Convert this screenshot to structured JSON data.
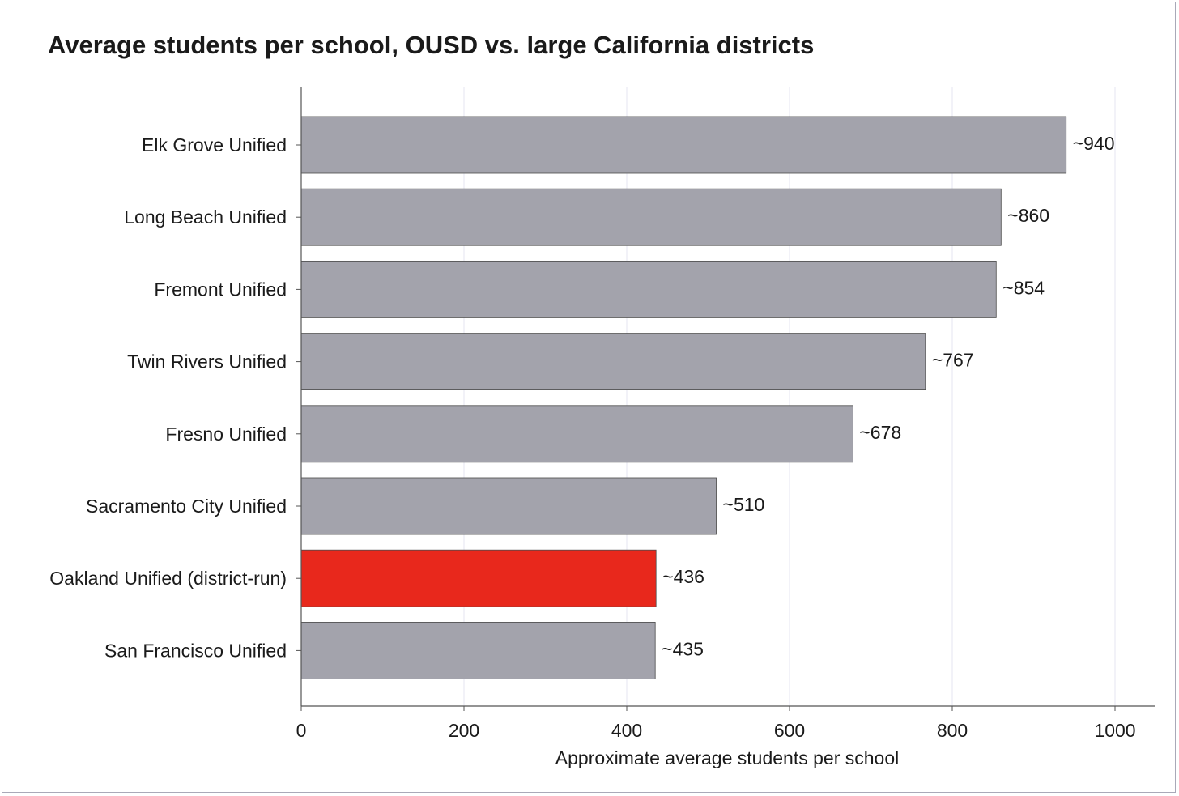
{
  "chart_data": {
    "type": "bar",
    "orientation": "horizontal",
    "title": "Average students per school, OUSD vs. large California districts",
    "xlabel": "Approximate average students per school",
    "ylabel": "",
    "xlim": [
      0,
      1050
    ],
    "xticks": [
      0,
      200,
      400,
      600,
      800,
      1000
    ],
    "grid": true,
    "categories": [
      "Elk Grove Unified",
      "Long Beach Unified",
      "Fremont Unified",
      "Twin Rivers Unified",
      "Fresno Unified",
      "Sacramento City Unified",
      "Oakland Unified (district-run)",
      "San Francisco Unified"
    ],
    "values": [
      940,
      860,
      854,
      767,
      678,
      510,
      436,
      435
    ],
    "value_labels": [
      "~940",
      "~860",
      "~854",
      "~767",
      "~678",
      "~510",
      "~436",
      "~435"
    ],
    "bar_colors": [
      "#a3a3ac",
      "#a3a3ac",
      "#a3a3ac",
      "#a3a3ac",
      "#a3a3ac",
      "#a3a3ac",
      "#e8281c",
      "#a3a3ac"
    ],
    "colors": {
      "default_bar": "#a3a3ac",
      "highlight_bar": "#e8281c",
      "grid": "#e6e6f2",
      "axis": "#555555"
    }
  }
}
